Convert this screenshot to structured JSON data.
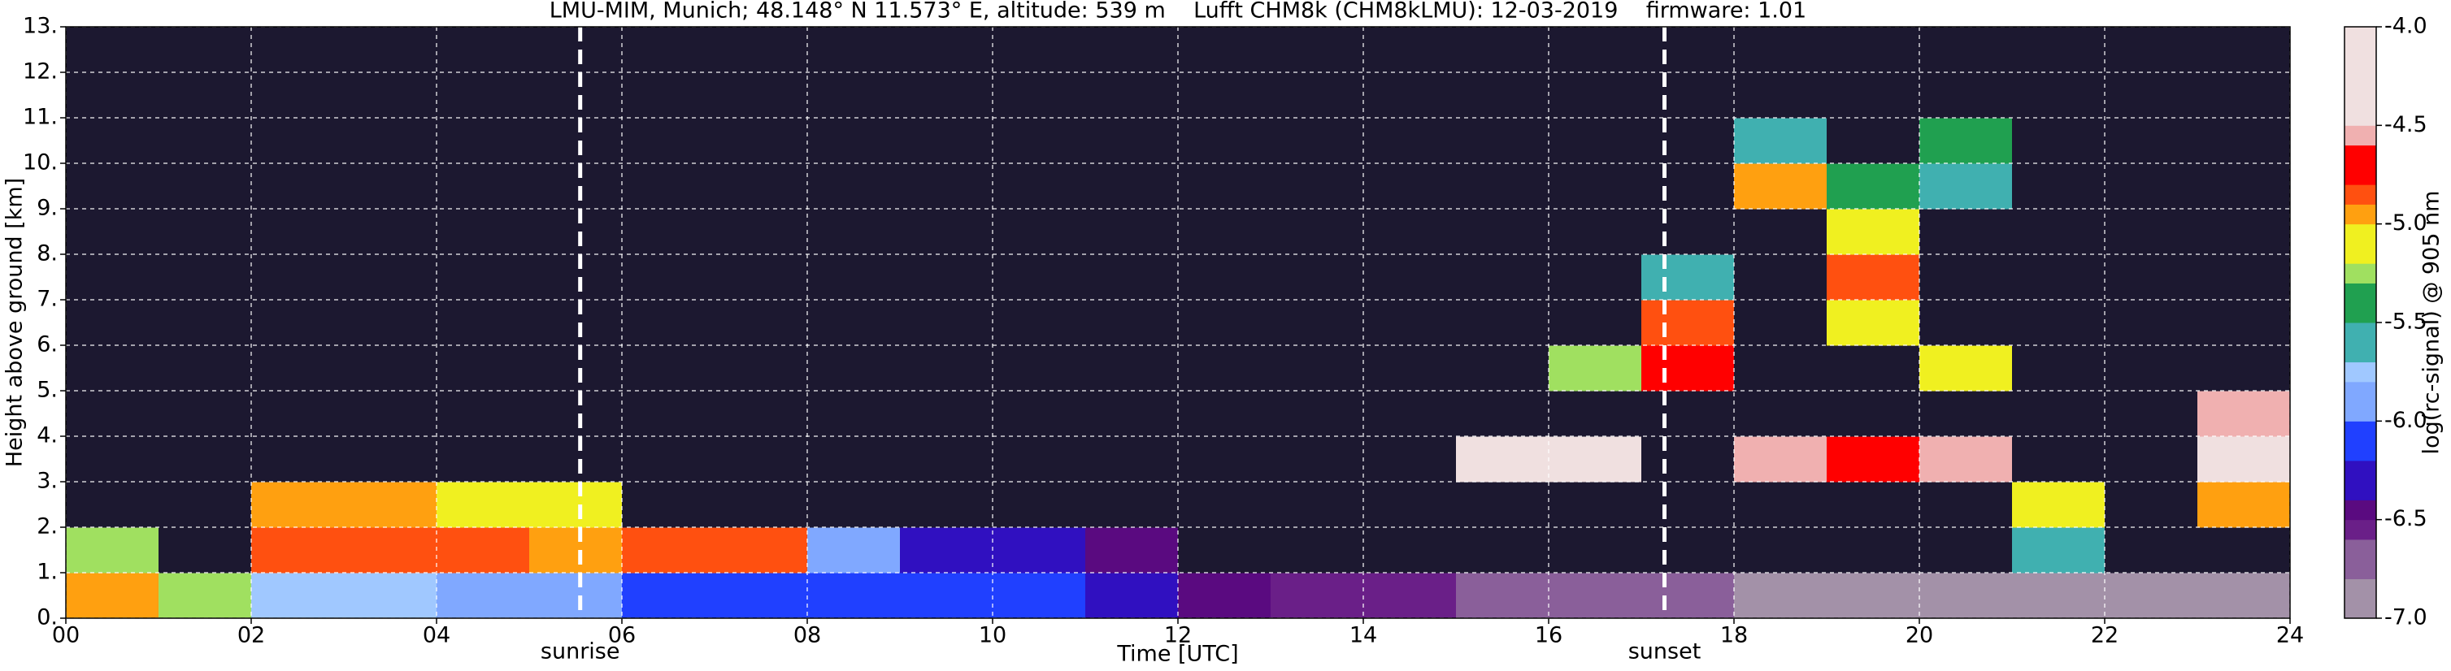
{
  "chart_data": {
    "type": "heatmap",
    "title": "LMU-MIM, Munich; 48.148° N 11.573° E, altitude: 539 m    Lufft CHM8k (CHM8kLMU): 12-03-2019    firmware: 1.01",
    "x_label": "Time [UTC]",
    "y_label": "Height above ground [km]",
    "colorbar_label": "log(rc-signal) @ 905 nm",
    "xlim": [
      0,
      24
    ],
    "ylim": [
      0,
      13
    ],
    "xticks": [
      {
        "value": 0,
        "label": "00"
      },
      {
        "value": 2,
        "label": "02"
      },
      {
        "value": 4,
        "label": "04"
      },
      {
        "value": 6,
        "label": "06"
      },
      {
        "value": 8,
        "label": "08"
      },
      10,
      12,
      14,
      16,
      18,
      20,
      22,
      24
    ],
    "yticks": [
      {
        "value": 0,
        "label": "0."
      },
      {
        "value": 1,
        "label": "1."
      },
      {
        "value": 2,
        "label": "2."
      },
      {
        "value": 3,
        "label": "3."
      },
      {
        "value": 4,
        "label": "4."
      },
      {
        "value": 5,
        "label": "5."
      },
      {
        "value": 6,
        "label": "6."
      },
      {
        "value": 7,
        "label": "7."
      },
      {
        "value": 8,
        "label": "8."
      },
      {
        "value": 9,
        "label": "9."
      },
      {
        "value": 10,
        "label": "10."
      },
      {
        "value": 11,
        "label": "11."
      },
      {
        "value": 12,
        "label": "12."
      },
      {
        "value": 13,
        "label": "13."
      }
    ],
    "clim": [
      -7,
      -4
    ],
    "cticks": [
      {
        "value": -7,
        "label": "-7.0"
      },
      -6.5,
      {
        "value": -6,
        "label": "-6.0"
      },
      -5.5,
      {
        "value": -5,
        "label": "-5.0"
      },
      -4.5,
      {
        "value": -4,
        "label": "-4.0"
      }
    ],
    "grid": true,
    "under_color": "#1c1830",
    "colormap": [
      {
        "value": -7.0,
        "color": "#a391a8"
      },
      {
        "value": -6.8,
        "color": "#8a5f9a"
      },
      {
        "value": -6.6,
        "color": "#6a1f88"
      },
      {
        "value": -6.5,
        "color": "#5a0a80"
      },
      {
        "value": -6.4,
        "color": "#3010c0"
      },
      {
        "value": -6.2,
        "color": "#2040ff"
      },
      {
        "value": -6.0,
        "color": "#80a8ff"
      },
      {
        "value": -5.8,
        "color": "#a0c8ff"
      },
      {
        "value": -5.7,
        "color": "#40b0b0"
      },
      {
        "value": -5.5,
        "color": "#20a050"
      },
      {
        "value": -5.3,
        "color": "#a0e060"
      },
      {
        "value": -5.2,
        "color": "#f0f020"
      },
      {
        "value": -5.0,
        "color": "#ffa010"
      },
      {
        "value": -4.9,
        "color": "#ff5010"
      },
      {
        "value": -4.8,
        "color": "#ff0000"
      },
      {
        "value": -4.6,
        "color": "#f0b0b0"
      },
      {
        "value": -4.5,
        "color": "#f0e0e0"
      },
      {
        "value": -4.0,
        "color": "#ffffff"
      }
    ],
    "z": [
      [
        -5.0,
        -5.3,
        -5.8,
        -5.8,
        -5.9,
        -5.9,
        -6.1,
        -6.1,
        -6.1,
        -6.2,
        -6.2,
        -6.3,
        -6.5,
        -6.6,
        -6.6,
        -6.7,
        -6.7,
        -6.8,
        -6.9,
        -6.9,
        -6.9,
        -6.9,
        -6.9,
        -6.9
      ],
      [
        -5.3,
        -7.2,
        -4.9,
        -4.9,
        -4.9,
        -5.0,
        -4.9,
        -4.9,
        -6.0,
        -6.4,
        -6.3,
        -6.5,
        -7.2,
        -7.2,
        -7.2,
        -7.2,
        -7.2,
        -7.2,
        -7.2,
        -7.2,
        -7.2,
        -5.6,
        -7.2,
        -7.2
      ],
      [
        -7.2,
        -7.2,
        -5.0,
        -5.0,
        -5.1,
        -5.2,
        -7.2,
        -7.2,
        -7.2,
        -7.2,
        -7.2,
        -7.2,
        -7.2,
        -7.2,
        -7.2,
        -7.2,
        -7.2,
        -7.2,
        -7.2,
        -7.2,
        -7.2,
        -5.2,
        -7.2,
        -5.0
      ],
      [
        -7.2,
        -7.2,
        -7.2,
        -7.2,
        -7.2,
        -7.2,
        -7.2,
        -7.2,
        -7.2,
        -7.2,
        -7.2,
        -7.2,
        -7.2,
        -7.2,
        -7.2,
        -4.4,
        -4.4,
        -7.2,
        -4.6,
        -4.7,
        -4.6,
        -7.2,
        -7.2,
        -4.3
      ],
      [
        -7.2,
        -7.2,
        -7.2,
        -7.2,
        -7.2,
        -7.2,
        -7.2,
        -7.2,
        -7.2,
        -7.2,
        -7.2,
        -7.2,
        -7.2,
        -7.2,
        -7.2,
        -7.2,
        -7.2,
        -7.2,
        -7.2,
        -7.2,
        -7.2,
        -7.2,
        -7.2,
        -4.6
      ],
      [
        -7.2,
        -7.2,
        -7.2,
        -7.2,
        -7.2,
        -7.2,
        -7.2,
        -7.2,
        -7.2,
        -7.2,
        -7.2,
        -7.2,
        -7.2,
        -7.2,
        -7.2,
        -7.2,
        -5.3,
        -4.7,
        -7.2,
        -7.2,
        -5.2,
        -7.2,
        -7.2,
        -7.2
      ],
      [
        -7.2,
        -7.2,
        -7.2,
        -7.2,
        -7.2,
        -7.2,
        -7.2,
        -7.2,
        -7.2,
        -7.2,
        -7.2,
        -7.2,
        -7.2,
        -7.2,
        -7.2,
        -7.2,
        -7.2,
        -4.9,
        -7.2,
        -5.2,
        -7.2,
        -7.2,
        -7.2,
        -7.2
      ],
      [
        -7.2,
        -7.2,
        -7.2,
        -7.2,
        -7.2,
        -7.2,
        -7.2,
        -7.2,
        -7.2,
        -7.2,
        -7.2,
        -7.2,
        -7.2,
        -7.2,
        -7.2,
        -7.2,
        -7.2,
        -5.6,
        -7.2,
        -4.9,
        -7.2,
        -7.2,
        -7.2,
        -7.2
      ],
      [
        -7.2,
        -7.2,
        -7.2,
        -7.2,
        -7.2,
        -7.2,
        -7.2,
        -7.2,
        -7.2,
        -7.2,
        -7.2,
        -7.2,
        -7.2,
        -7.2,
        -7.2,
        -7.2,
        -7.2,
        -7.2,
        -7.2,
        -5.2,
        -7.2,
        -7.2,
        -7.2,
        -7.2
      ],
      [
        -7.2,
        -7.2,
        -7.2,
        -7.2,
        -7.2,
        -7.2,
        -7.2,
        -7.2,
        -7.2,
        -7.2,
        -7.2,
        -7.2,
        -7.2,
        -7.2,
        -7.2,
        -7.2,
        -7.2,
        -7.2,
        -5.0,
        -5.5,
        -5.7,
        -7.2,
        -7.2,
        -7.2
      ],
      [
        -7.2,
        -7.2,
        -7.2,
        -7.2,
        -7.2,
        -7.2,
        -7.2,
        -7.2,
        -7.2,
        -7.2,
        -7.2,
        -7.2,
        -7.2,
        -7.2,
        -7.2,
        -7.2,
        -7.2,
        -7.2,
        -5.7,
        -7.2,
        -5.5,
        -7.2,
        -7.2,
        -7.2
      ],
      [
        -7.2,
        -7.2,
        -7.2,
        -7.2,
        -7.2,
        -7.2,
        -7.2,
        -7.2,
        -7.2,
        -7.2,
        -7.2,
        -7.2,
        -7.2,
        -7.2,
        -7.2,
        -7.2,
        -7.2,
        -7.2,
        -7.2,
        -7.2,
        -7.2,
        -7.2,
        -7.2,
        -7.2
      ],
      [
        -7.2,
        -7.2,
        -7.2,
        -7.2,
        -7.2,
        -7.2,
        -7.2,
        -7.2,
        -7.2,
        -7.2,
        -7.2,
        -7.2,
        -7.2,
        -7.2,
        -7.2,
        -7.2,
        -7.2,
        -7.2,
        -7.2,
        -7.2,
        -7.2,
        -7.2,
        -7.2,
        -7.2
      ]
    ],
    "annotations": [
      {
        "x": 5.55,
        "label": "sunrise"
      },
      {
        "x": 17.25,
        "label": "sunset"
      }
    ]
  }
}
